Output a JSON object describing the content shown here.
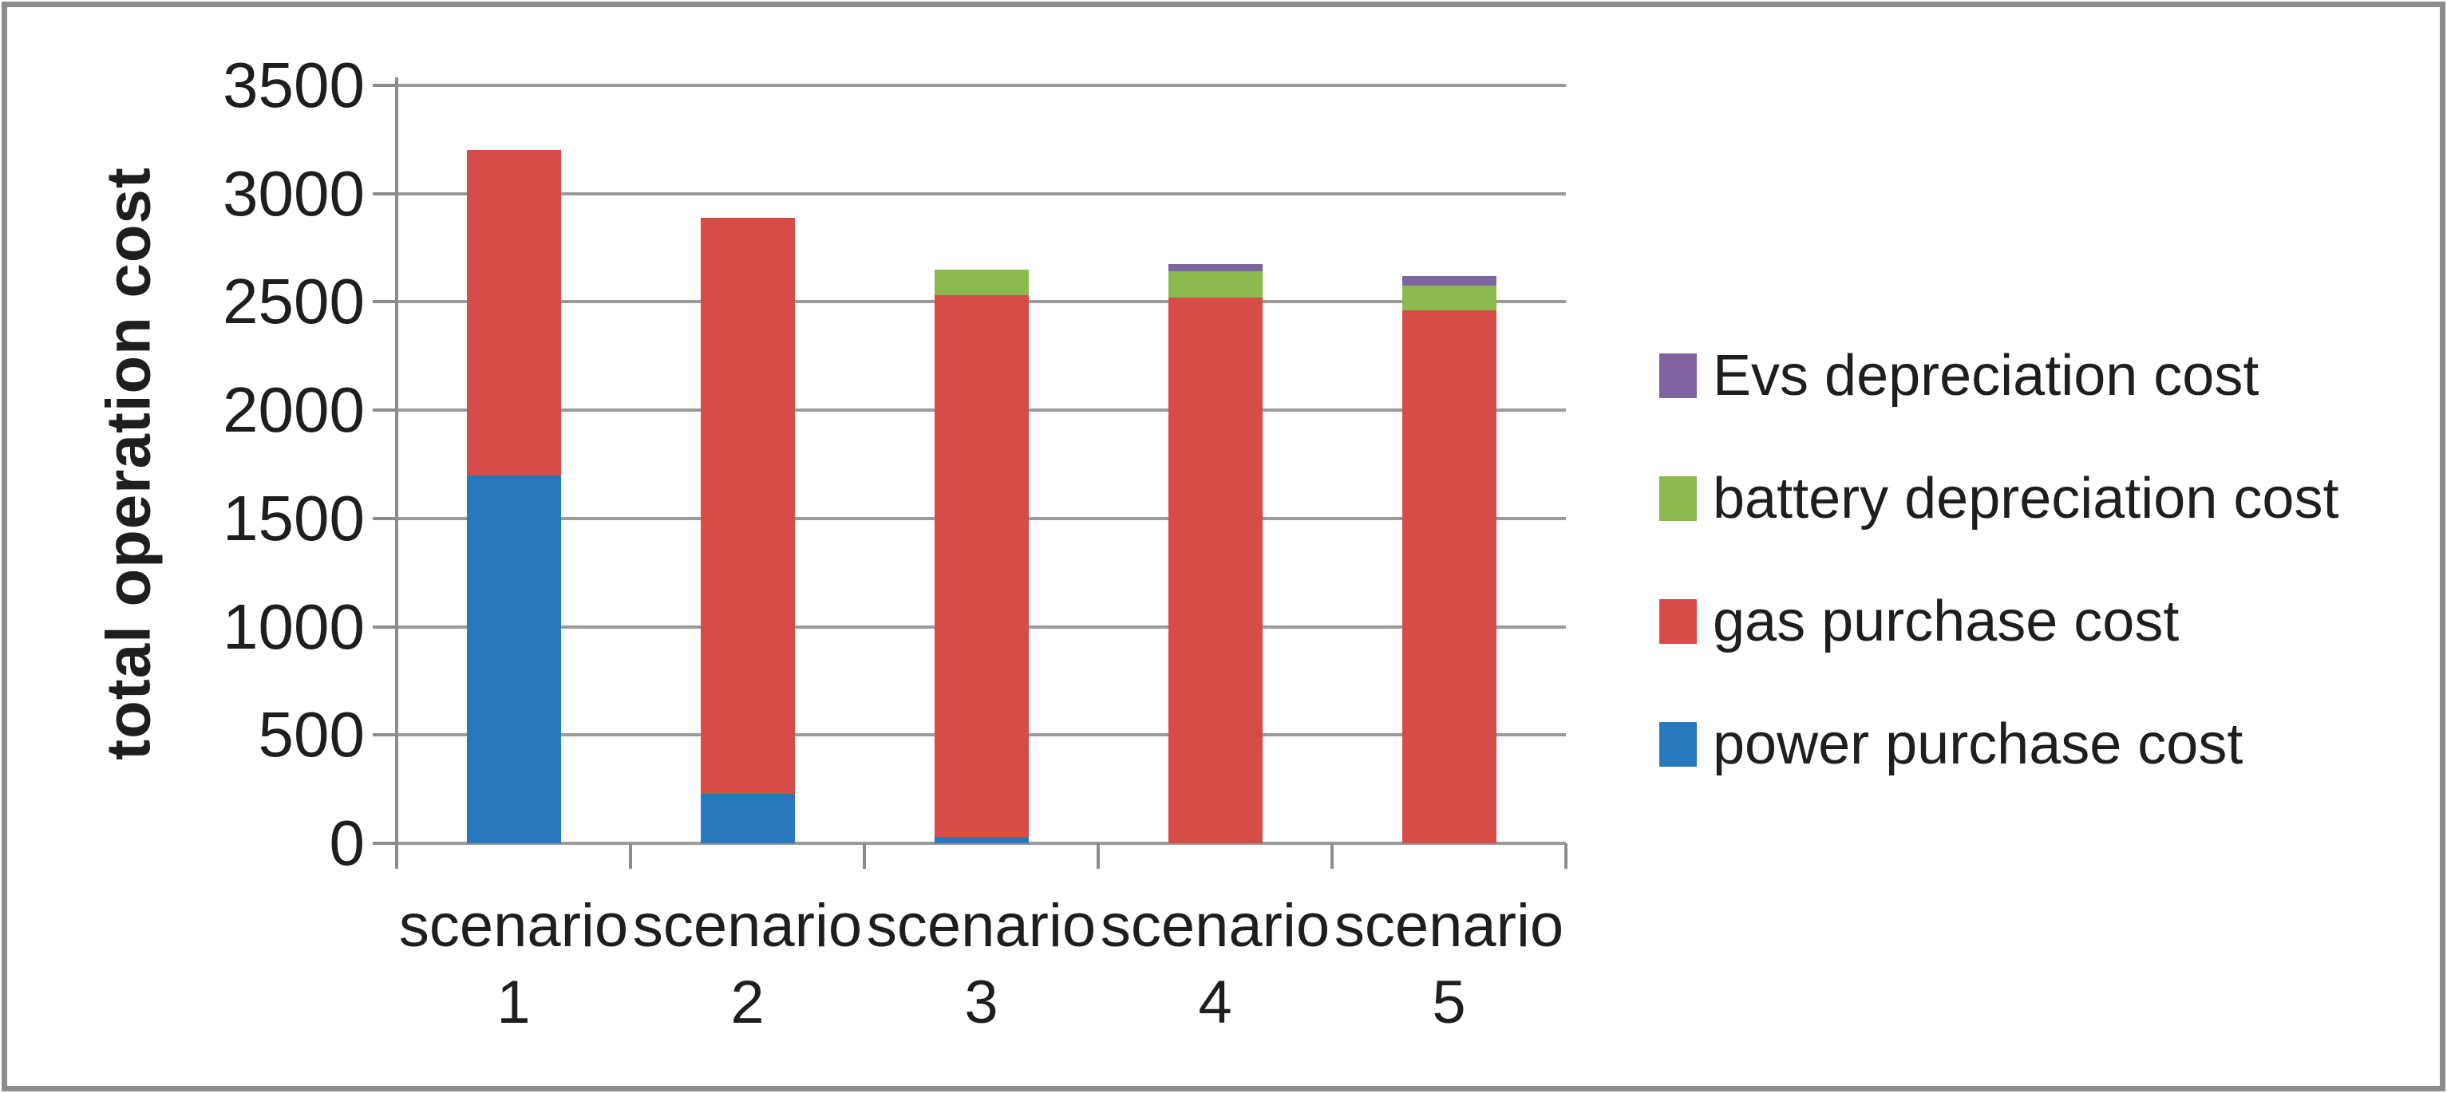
{
  "chart_data": {
    "type": "bar",
    "stacked": true,
    "title": "",
    "xlabel": "",
    "ylabel": "total operation cost",
    "categories": [
      "scenario 1",
      "scenario 2",
      "scenario 3",
      "scenario 4",
      "scenario 5"
    ],
    "series": [
      {
        "name": "power purchase cost",
        "color": "#2878be",
        "values": [
          1700,
          230,
          30,
          0,
          0
        ]
      },
      {
        "name": "gas purchase cost",
        "color": "#d74b49",
        "values": [
          1500,
          2660,
          2500,
          2520,
          2460
        ]
      },
      {
        "name": "battery depreciation cost",
        "color": "#8cba4e",
        "values": [
          0,
          0,
          120,
          120,
          115
        ]
      },
      {
        "name": "Evs depreciation cost",
        "color": "#8064a2",
        "values": [
          0,
          0,
          0,
          35,
          45
        ]
      }
    ],
    "legend_order_top_to_bottom": [
      "Evs depreciation cost",
      "battery depreciation cost",
      "gas purchase cost",
      "power purchase cost"
    ],
    "legend_position": "right",
    "grid": true,
    "y_axis": {
      "min": 0,
      "max": 3500,
      "step": 500,
      "tick_labels": [
        "0",
        "500",
        "1000",
        "1500",
        "2000",
        "2500",
        "3000",
        "3500"
      ]
    },
    "style": {
      "grid_color": "#9a9a9a",
      "axis_color": "#8c8c8c",
      "text_color": "#1e1e1e",
      "frame_color": "#8c8c8c",
      "background": "#ffffff"
    }
  }
}
